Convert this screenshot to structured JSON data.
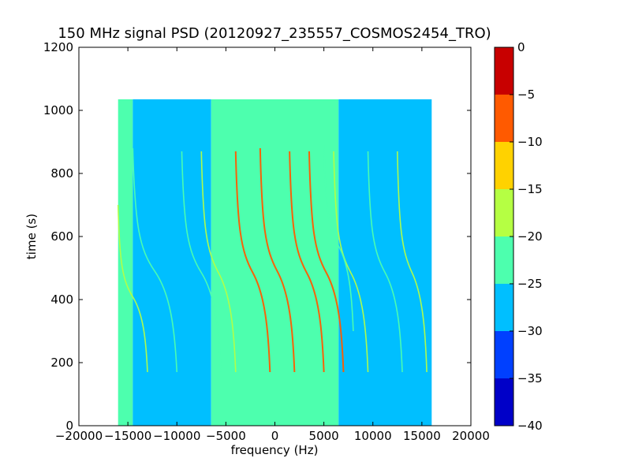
{
  "chart_data": {
    "type": "heatmap",
    "title": "150 MHz signal PSD (20120927_235557_COSMOS2454_TRO)",
    "xlabel": "frequency (Hz)",
    "ylabel": "time (s)",
    "xlim": [
      -20000,
      20000
    ],
    "ylim": [
      0,
      1200
    ],
    "xticks": [
      "−20000",
      "−15000",
      "−10000",
      "−5000",
      "0",
      "5000",
      "10000",
      "15000",
      "20000"
    ],
    "yticks": [
      "0",
      "200",
      "400",
      "600",
      "800",
      "1000",
      "1200"
    ],
    "data_extent": {
      "x": [
        -16000,
        16000
      ],
      "y": [
        0,
        1035
      ]
    },
    "grid": false,
    "colormap": "jet",
    "colorbar": {
      "range": [
        -40,
        0
      ],
      "ticks": [
        "0",
        "−5",
        "−10",
        "−15",
        "−20",
        "−25",
        "−30",
        "−35",
        "−40"
      ],
      "levels": [
        {
          "from": -40,
          "to": -35,
          "color": "#0000c8"
        },
        {
          "from": -35,
          "to": -30,
          "color": "#0040ff"
        },
        {
          "from": -30,
          "to": -25,
          "color": "#00bfff"
        },
        {
          "from": -25,
          "to": -20,
          "color": "#4dffae"
        },
        {
          "from": -20,
          "to": -15,
          "color": "#b5ff43"
        },
        {
          "from": -15,
          "to": -10,
          "color": "#ffd200"
        },
        {
          "from": -10,
          "to": -5,
          "color": "#ff5a00"
        },
        {
          "from": -5,
          "to": 0,
          "color": "#c80000"
        }
      ]
    },
    "background_regions": [
      {
        "x": [
          -16000,
          -14500
        ],
        "level": -22.5
      },
      {
        "x": [
          -14500,
          -6500
        ],
        "level": -27.5
      },
      {
        "x": [
          -6500,
          6500
        ],
        "level": -22.5
      },
      {
        "x": [
          6500,
          16000
        ],
        "level": -27.5
      }
    ],
    "traces": [
      {
        "x_top": -14500,
        "x_bottom": -10000,
        "t_top": 880,
        "t_bottom": 170,
        "level": -22.5
      },
      {
        "x_top": -9500,
        "x_bottom": -5500,
        "t_top": 870,
        "t_bottom": 170,
        "level": -22.5
      },
      {
        "x_top": -7500,
        "x_bottom": -4000,
        "t_top": 870,
        "t_bottom": 170,
        "level": -17.5
      },
      {
        "x_top": -4000,
        "x_bottom": -500,
        "t_top": 870,
        "t_bottom": 170,
        "level": -7.5
      },
      {
        "x_top": -1500,
        "x_bottom": 2000,
        "t_top": 880,
        "t_bottom": 170,
        "level": -7.5
      },
      {
        "x_top": 1500,
        "x_bottom": 5000,
        "t_top": 870,
        "t_bottom": 170,
        "level": -7.5
      },
      {
        "x_top": 3500,
        "x_bottom": 7000,
        "t_top": 870,
        "t_bottom": 170,
        "level": -7.5
      },
      {
        "x_top": 6000,
        "x_bottom": 9500,
        "t_top": 870,
        "t_bottom": 170,
        "level": -17.5
      },
      {
        "x_top": 9500,
        "x_bottom": 13000,
        "t_top": 870,
        "t_bottom": 170,
        "level": -22.5
      },
      {
        "x_top": 12500,
        "x_bottom": 15500,
        "t_top": 870,
        "t_bottom": 170,
        "level": -17.5
      },
      {
        "x_top": -16000,
        "x_bottom": -13000,
        "t_top": 700,
        "t_bottom": 170,
        "level": -17.5
      },
      {
        "x_top": 5000,
        "x_bottom": 8000,
        "t_top": 900,
        "t_bottom": 300,
        "level": -22.5
      }
    ]
  }
}
